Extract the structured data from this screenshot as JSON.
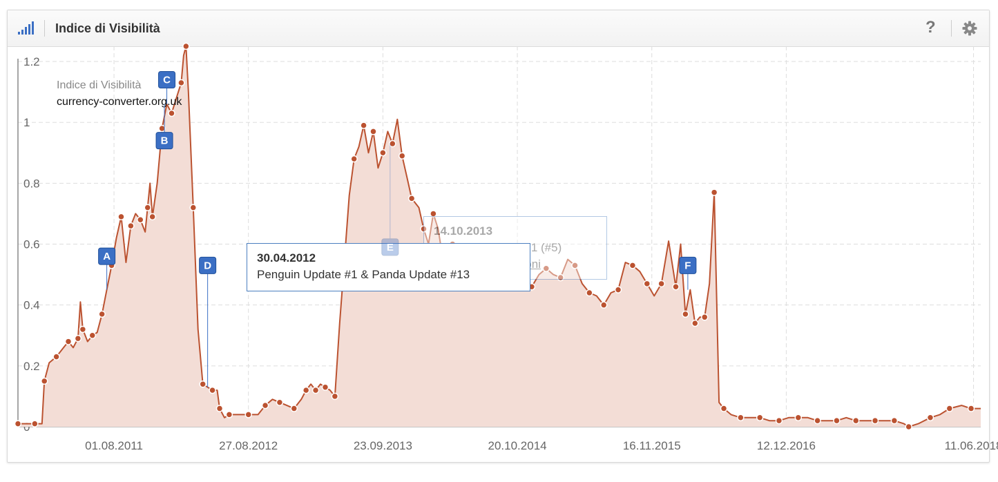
{
  "header": {
    "title": "Indice di Visibilità",
    "help_label": "?"
  },
  "chart_data": {
    "type": "area",
    "title": "",
    "xlabel": "",
    "ylabel": "",
    "legend": {
      "metric": "Indice di Visibilità",
      "domain": "currency-converter.org.uk",
      "placement": "top-left"
    },
    "ylim": [
      0,
      1.25
    ],
    "y_ticks": [
      0,
      0.2,
      0.4,
      0.6,
      0.8,
      1,
      1.2
    ],
    "y_tick_labels": [
      "0",
      "0.2",
      "0.4",
      "0.6",
      "0.8",
      "1",
      "1.2"
    ],
    "x_tick_labels": [
      "01.08.2011",
      "27.08.2012",
      "23.09.2013",
      "20.10.2014",
      "16.11.2015",
      "12.12.2016",
      "11.06.2018"
    ],
    "x_tick_dates": [
      "2011-08-01",
      "2012-08-27",
      "2013-09-23",
      "2014-10-20",
      "2015-11-16",
      "2016-12-12",
      "2018-06-11"
    ],
    "xlim": [
      "2010-10-25",
      "2018-07-02"
    ],
    "grid": true,
    "series": [
      {
        "color": "#bb5230",
        "fill": "#f3ddd6",
        "points": [
          [
            "2010-10-25",
            0.01
          ],
          [
            "2010-11-15",
            0.01
          ],
          [
            "2010-12-13",
            0.01
          ],
          [
            "2011-01-03",
            0.01
          ],
          [
            "2011-01-10",
            0.15
          ],
          [
            "2011-01-24",
            0.21
          ],
          [
            "2011-02-14",
            0.23
          ],
          [
            "2011-03-07",
            0.26
          ],
          [
            "2011-03-21",
            0.28
          ],
          [
            "2011-04-04",
            0.26
          ],
          [
            "2011-04-18",
            0.29
          ],
          [
            "2011-04-25",
            0.41
          ],
          [
            "2011-05-02",
            0.32
          ],
          [
            "2011-05-16",
            0.28
          ],
          [
            "2011-05-30",
            0.3
          ],
          [
            "2011-06-13",
            0.31
          ],
          [
            "2011-06-27",
            0.37
          ],
          [
            "2011-07-11",
            0.45
          ],
          [
            "2011-07-25",
            0.53
          ],
          [
            "2011-08-08",
            0.62
          ],
          [
            "2011-08-22",
            0.69
          ],
          [
            "2011-09-05",
            0.54
          ],
          [
            "2011-09-19",
            0.66
          ],
          [
            "2011-10-03",
            0.7
          ],
          [
            "2011-10-17",
            0.68
          ],
          [
            "2011-10-31",
            0.64
          ],
          [
            "2011-11-07",
            0.72
          ],
          [
            "2011-11-14",
            0.8
          ],
          [
            "2011-11-21",
            0.69
          ],
          [
            "2011-12-05",
            0.8
          ],
          [
            "2011-12-19",
            0.98
          ],
          [
            "2012-01-02",
            1.06
          ],
          [
            "2012-01-16",
            1.03
          ],
          [
            "2012-01-30",
            1.08
          ],
          [
            "2012-02-13",
            1.13
          ],
          [
            "2012-02-20",
            1.22
          ],
          [
            "2012-02-27",
            1.25
          ],
          [
            "2012-03-05",
            1.1
          ],
          [
            "2012-03-19",
            0.72
          ],
          [
            "2012-04-02",
            0.32
          ],
          [
            "2012-04-16",
            0.14
          ],
          [
            "2012-04-30",
            0.13
          ],
          [
            "2012-05-14",
            0.12
          ],
          [
            "2012-05-28",
            0.12
          ],
          [
            "2012-06-04",
            0.06
          ],
          [
            "2012-06-18",
            0.03
          ],
          [
            "2012-07-02",
            0.04
          ],
          [
            "2012-07-30",
            0.04
          ],
          [
            "2012-08-27",
            0.04
          ],
          [
            "2012-09-24",
            0.04
          ],
          [
            "2012-10-15",
            0.07
          ],
          [
            "2012-11-05",
            0.09
          ],
          [
            "2012-11-26",
            0.08
          ],
          [
            "2012-12-17",
            0.07
          ],
          [
            "2013-01-07",
            0.06
          ],
          [
            "2013-01-28",
            0.09
          ],
          [
            "2013-02-11",
            0.12
          ],
          [
            "2013-02-25",
            0.14
          ],
          [
            "2013-03-11",
            0.12
          ],
          [
            "2013-03-25",
            0.14
          ],
          [
            "2013-04-08",
            0.13
          ],
          [
            "2013-04-22",
            0.12
          ],
          [
            "2013-05-06",
            0.1
          ],
          [
            "2013-05-20",
            0.34
          ],
          [
            "2013-06-03",
            0.55
          ],
          [
            "2013-06-17",
            0.76
          ],
          [
            "2013-07-01",
            0.88
          ],
          [
            "2013-07-15",
            0.92
          ],
          [
            "2013-07-29",
            0.99
          ],
          [
            "2013-08-12",
            0.9
          ],
          [
            "2013-08-26",
            0.97
          ],
          [
            "2013-09-09",
            0.85
          ],
          [
            "2013-09-23",
            0.9
          ],
          [
            "2013-10-07",
            0.97
          ],
          [
            "2013-10-21",
            0.93
          ],
          [
            "2013-11-04",
            1.01
          ],
          [
            "2013-11-18",
            0.89
          ],
          [
            "2013-12-02",
            0.82
          ],
          [
            "2013-12-16",
            0.75
          ],
          [
            "2014-01-06",
            0.72
          ],
          [
            "2014-01-20",
            0.65
          ],
          [
            "2014-02-03",
            0.6
          ],
          [
            "2014-02-17",
            0.7
          ],
          [
            "2014-03-03",
            0.65
          ],
          [
            "2014-03-17",
            0.55
          ],
          [
            "2014-03-31",
            0.52
          ],
          [
            "2014-04-14",
            0.6
          ],
          [
            "2014-04-28",
            0.55
          ],
          [
            "2014-05-12",
            0.5
          ],
          [
            "2014-05-26",
            0.54
          ],
          [
            "2014-06-09",
            0.49
          ],
          [
            "2014-06-23",
            0.53
          ],
          [
            "2014-07-07",
            0.5
          ],
          [
            "2014-07-21",
            0.55
          ],
          [
            "2014-08-04",
            0.48
          ],
          [
            "2014-08-18",
            0.52
          ],
          [
            "2014-09-01",
            0.5
          ],
          [
            "2014-09-22",
            0.54
          ],
          [
            "2014-10-20",
            0.53
          ],
          [
            "2014-11-10",
            0.5
          ],
          [
            "2014-12-01",
            0.46
          ],
          [
            "2014-12-22",
            0.5
          ],
          [
            "2015-01-12",
            0.52
          ],
          [
            "2015-02-02",
            0.5
          ],
          [
            "2015-02-23",
            0.49
          ],
          [
            "2015-03-16",
            0.55
          ],
          [
            "2015-04-06",
            0.53
          ],
          [
            "2015-04-27",
            0.47
          ],
          [
            "2015-05-18",
            0.44
          ],
          [
            "2015-06-08",
            0.43
          ],
          [
            "2015-06-29",
            0.4
          ],
          [
            "2015-07-20",
            0.44
          ],
          [
            "2015-08-10",
            0.45
          ],
          [
            "2015-08-31",
            0.54
          ],
          [
            "2015-09-21",
            0.53
          ],
          [
            "2015-10-12",
            0.51
          ],
          [
            "2015-11-02",
            0.47
          ],
          [
            "2015-11-23",
            0.43
          ],
          [
            "2015-12-14",
            0.47
          ],
          [
            "2016-01-04",
            0.61
          ],
          [
            "2016-01-25",
            0.46
          ],
          [
            "2016-02-08",
            0.6
          ],
          [
            "2016-02-22",
            0.37
          ],
          [
            "2016-03-07",
            0.45
          ],
          [
            "2016-03-21",
            0.34
          ],
          [
            "2016-04-04",
            0.36
          ],
          [
            "2016-04-18",
            0.36
          ],
          [
            "2016-05-02",
            0.47
          ],
          [
            "2016-05-16",
            0.77
          ],
          [
            "2016-05-30",
            0.08
          ],
          [
            "2016-06-13",
            0.06
          ],
          [
            "2016-07-04",
            0.04
          ],
          [
            "2016-08-01",
            0.03
          ],
          [
            "2016-08-29",
            0.03
          ],
          [
            "2016-09-26",
            0.03
          ],
          [
            "2016-10-24",
            0.02
          ],
          [
            "2016-11-21",
            0.02
          ],
          [
            "2016-12-19",
            0.03
          ],
          [
            "2017-01-16",
            0.03
          ],
          [
            "2017-02-13",
            0.03
          ],
          [
            "2017-03-13",
            0.02
          ],
          [
            "2017-04-10",
            0.02
          ],
          [
            "2017-05-08",
            0.02
          ],
          [
            "2017-06-05",
            0.03
          ],
          [
            "2017-07-03",
            0.02
          ],
          [
            "2017-07-31",
            0.02
          ],
          [
            "2017-08-28",
            0.02
          ],
          [
            "2017-09-25",
            0.02
          ],
          [
            "2017-10-23",
            0.02
          ],
          [
            "2017-11-20",
            0.01
          ],
          [
            "2017-12-04",
            0.0
          ],
          [
            "2018-01-01",
            0.01
          ],
          [
            "2018-02-05",
            0.03
          ],
          [
            "2018-03-05",
            0.04
          ],
          [
            "2018-04-02",
            0.06
          ],
          [
            "2018-05-07",
            0.07
          ],
          [
            "2018-06-04",
            0.06
          ],
          [
            "2018-07-02",
            0.06
          ]
        ]
      }
    ],
    "events": [
      {
        "label": "A",
        "date": "2011-07-11"
      },
      {
        "label": "B",
        "date": "2011-12-26"
      },
      {
        "label": "C",
        "date": "2012-01-02"
      },
      {
        "label": "D",
        "date": "2012-04-30"
      },
      {
        "label": "E",
        "date": "2013-10-14"
      },
      {
        "label": "F",
        "date": "2016-02-29"
      }
    ]
  },
  "tooltips": [
    {
      "date": "30.04.2012",
      "text": "Penguin Update #1 & Panda Update #13"
    },
    {
      "date": "14.10.2013",
      "text": "Penguin Update 2.1 (#5)",
      "link": "Ulteriori informazioni"
    }
  ]
}
